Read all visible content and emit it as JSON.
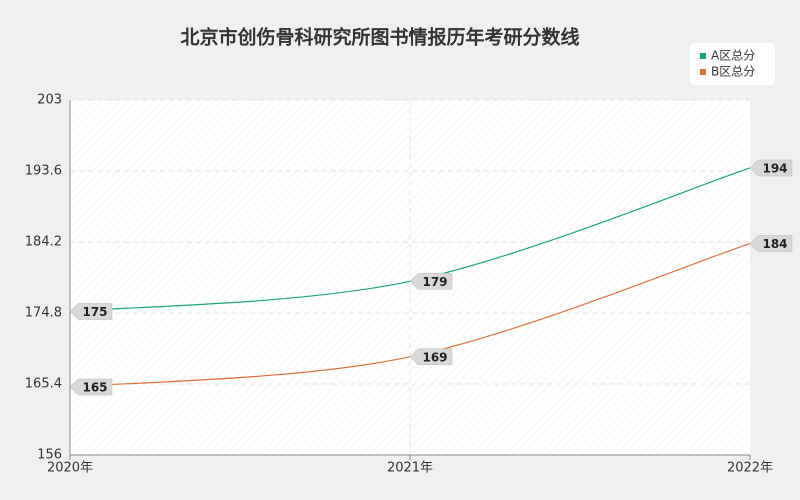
{
  "chart_data": {
    "type": "line",
    "title": "北京市创伤骨科研究所图书情报历年考研分数线",
    "categories": [
      "2020年",
      "2021年",
      "2022年"
    ],
    "series": [
      {
        "name": "A区总分",
        "color": "#1aa37a",
        "values": [
          175,
          179,
          194
        ]
      },
      {
        "name": "B区总分",
        "color": "#e0703f",
        "values": [
          165,
          169,
          184
        ]
      }
    ],
    "ylim": [
      156,
      203
    ],
    "yticks": [
      156,
      165.4,
      174.8,
      184.2,
      193.6,
      203
    ],
    "grid": true,
    "legend": "top-right"
  }
}
